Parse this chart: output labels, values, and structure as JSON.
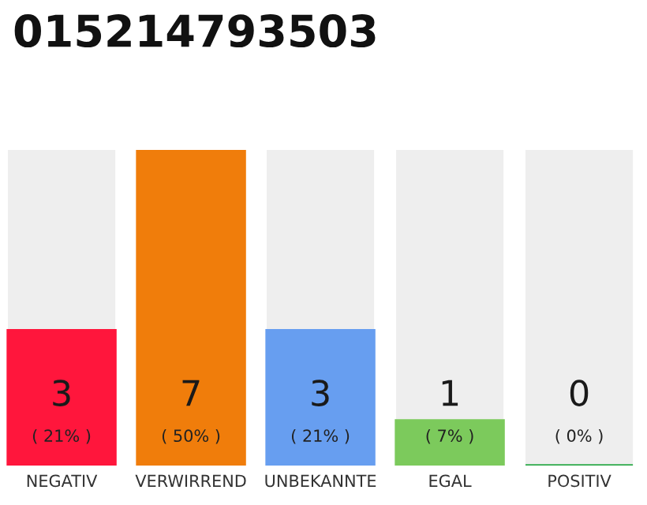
{
  "chart_data": {
    "type": "bar",
    "title": "015214793503",
    "categories": [
      "NEGATIV",
      "VERWIRREND",
      "UNBEKANNTE",
      "EGAL",
      "POSITIV"
    ],
    "values": [
      3,
      7,
      3,
      1,
      0
    ],
    "colors": [
      "#ff163c",
      "#f07d0b",
      "#679ef0",
      "#7cca5c",
      "#2eaa4a"
    ],
    "ylim": [
      0,
      7
    ],
    "data_labels": true,
    "tick_labels": "x",
    "grid": false,
    "annotations": [
      "( 21% )",
      "( 50% )",
      "( 21% )",
      "( 7% )",
      "( 0% )"
    ]
  }
}
